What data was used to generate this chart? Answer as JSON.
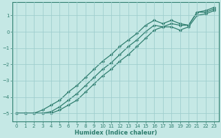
{
  "title": "",
  "xlabel": "Humidex (Indice chaleur)",
  "ylabel": "",
  "bg_color": "#c5e8e5",
  "grid_color": "#9fcece",
  "line_color": "#2e7d6e",
  "xlim": [
    -0.5,
    23.5
  ],
  "ylim": [
    -5.5,
    1.8
  ],
  "yticks": [
    -5,
    -4,
    -3,
    -2,
    -1,
    0,
    1
  ],
  "xticks": [
    0,
    1,
    2,
    3,
    4,
    5,
    6,
    7,
    8,
    9,
    10,
    11,
    12,
    13,
    14,
    15,
    16,
    17,
    18,
    19,
    20,
    21,
    22,
    23
  ],
  "series_x": [
    [
      0,
      1,
      2,
      3,
      4,
      5,
      6,
      7,
      8,
      9,
      10,
      11,
      12,
      13,
      14,
      15,
      16,
      17,
      18,
      19,
      20,
      21,
      22,
      23
    ],
    [
      0,
      1,
      2,
      3,
      4,
      5,
      6,
      7,
      8,
      9,
      10,
      11,
      12,
      13,
      14,
      15,
      16,
      17,
      18,
      19,
      20,
      21,
      22,
      23
    ],
    [
      0,
      1,
      2,
      3,
      4,
      5,
      6,
      7,
      8,
      9,
      10,
      11,
      12,
      13,
      14,
      15,
      16,
      17,
      18,
      19,
      20,
      21,
      22,
      23
    ]
  ],
  "series_y": [
    [
      -5.0,
      -5.0,
      -5.0,
      -4.8,
      -4.5,
      -4.2,
      -3.7,
      -3.3,
      -2.8,
      -2.3,
      -1.8,
      -1.4,
      -0.9,
      -0.5,
      -0.1,
      0.4,
      0.7,
      0.5,
      0.7,
      0.5,
      0.4,
      1.2,
      1.3,
      1.5
    ],
    [
      -5.0,
      -5.0,
      -5.0,
      -5.0,
      -5.0,
      -4.8,
      -4.5,
      -4.2,
      -3.7,
      -3.2,
      -2.7,
      -2.3,
      -1.8,
      -1.4,
      -0.9,
      -0.4,
      0.1,
      0.3,
      0.3,
      0.1,
      0.3,
      1.0,
      1.1,
      1.3
    ],
    [
      -5.0,
      -5.0,
      -5.0,
      -5.0,
      -4.9,
      -4.6,
      -4.2,
      -3.8,
      -3.3,
      -2.8,
      -2.3,
      -1.9,
      -1.4,
      -0.9,
      -0.5,
      0.0,
      0.4,
      0.3,
      0.5,
      0.4,
      0.4,
      1.2,
      1.2,
      1.4
    ]
  ]
}
